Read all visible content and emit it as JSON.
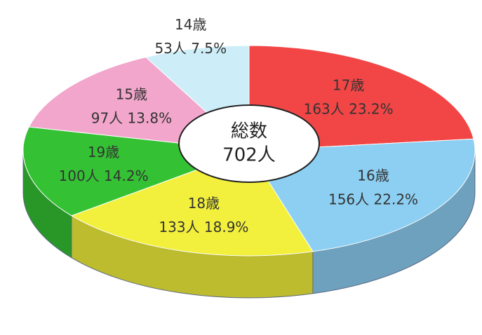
{
  "chart_data": {
    "type": "pie",
    "categories": [
      "17歳",
      "16歳",
      "18歳",
      "19歳",
      "15歳",
      "14歳"
    ],
    "values": [
      163,
      156,
      133,
      100,
      97,
      53
    ],
    "value_labels": [
      "163人 23.2%",
      "156人 22.2%",
      "133人 18.9%",
      "100人 14.2%",
      "97人 13.8%",
      "53人 7.5%"
    ],
    "colors": [
      "#f24646",
      "#8ccff2",
      "#f2f03c",
      "#34c234",
      "#f2a6cc",
      "#cdeef8"
    ],
    "center_label": [
      "総数",
      "702人"
    ]
  }
}
